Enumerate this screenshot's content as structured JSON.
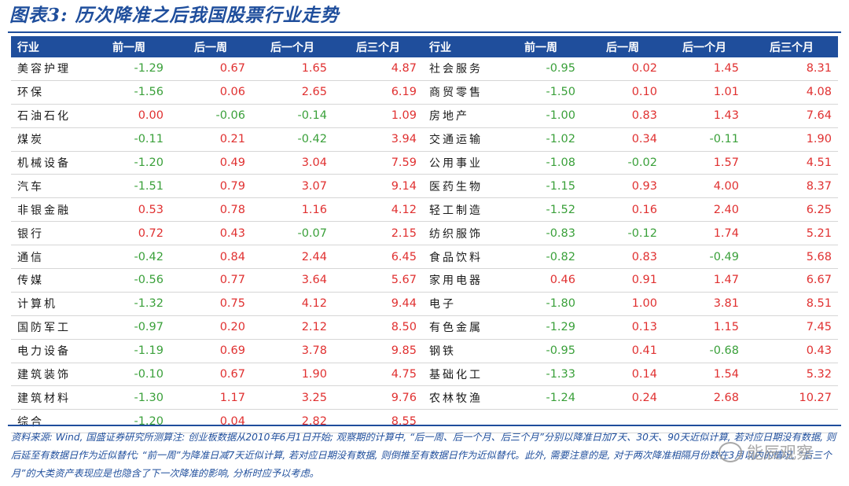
{
  "title": "图表3: 历次降准之后我国股票行业走势",
  "headers": [
    "行业",
    "前一周",
    "后一周",
    "后一个月",
    "后三个月",
    "行业",
    "前一周",
    "后一周",
    "后一个月",
    "后三个月"
  ],
  "left_rows": [
    {
      "name": "美容护理",
      "values": [
        "-1.29",
        "0.67",
        "1.65",
        "4.87"
      ]
    },
    {
      "name": "环保",
      "values": [
        "-1.56",
        "0.06",
        "2.65",
        "6.19"
      ]
    },
    {
      "name": "石油石化",
      "values": [
        "0.00",
        "-0.06",
        "-0.14",
        "1.09"
      ]
    },
    {
      "name": "煤炭",
      "values": [
        "-0.11",
        "0.21",
        "-0.42",
        "3.94"
      ]
    },
    {
      "name": "机械设备",
      "values": [
        "-1.20",
        "0.49",
        "3.04",
        "7.59"
      ]
    },
    {
      "name": "汽车",
      "values": [
        "-1.51",
        "0.79",
        "3.07",
        "9.14"
      ]
    },
    {
      "name": "非银金融",
      "values": [
        "0.53",
        "0.78",
        "1.16",
        "4.12"
      ]
    },
    {
      "name": "银行",
      "values": [
        "0.72",
        "0.43",
        "-0.07",
        "2.15"
      ]
    },
    {
      "name": "通信",
      "values": [
        "-0.42",
        "0.84",
        "2.44",
        "6.45"
      ]
    },
    {
      "name": "传媒",
      "values": [
        "-0.56",
        "0.77",
        "3.64",
        "5.67"
      ]
    },
    {
      "name": "计算机",
      "values": [
        "-1.32",
        "0.75",
        "4.12",
        "9.44"
      ]
    },
    {
      "name": "国防军工",
      "values": [
        "-0.97",
        "0.20",
        "2.12",
        "8.50"
      ]
    },
    {
      "name": "电力设备",
      "values": [
        "-1.19",
        "0.69",
        "3.78",
        "9.85"
      ]
    },
    {
      "name": "建筑装饰",
      "values": [
        "-0.10",
        "0.67",
        "1.90",
        "4.75"
      ]
    },
    {
      "name": "建筑材料",
      "values": [
        "-1.30",
        "1.17",
        "3.25",
        "9.76"
      ]
    },
    {
      "name": "综合",
      "values": [
        "-1.20",
        "0.04",
        "2.82",
        "8.55"
      ]
    }
  ],
  "right_rows": [
    {
      "name": "社会服务",
      "values": [
        "-0.95",
        "0.02",
        "1.45",
        "8.31"
      ]
    },
    {
      "name": "商贸零售",
      "values": [
        "-1.50",
        "0.10",
        "1.01",
        "4.08"
      ]
    },
    {
      "name": "房地产",
      "values": [
        "-1.00",
        "0.83",
        "1.43",
        "7.64"
      ]
    },
    {
      "name": "交通运输",
      "values": [
        "-1.02",
        "0.34",
        "-0.11",
        "1.90"
      ]
    },
    {
      "name": "公用事业",
      "values": [
        "-1.08",
        "-0.02",
        "1.57",
        "4.51"
      ]
    },
    {
      "name": "医药生物",
      "values": [
        "-1.15",
        "0.93",
        "4.00",
        "8.37"
      ]
    },
    {
      "name": "轻工制造",
      "values": [
        "-1.52",
        "0.16",
        "2.40",
        "6.25"
      ]
    },
    {
      "name": "纺织服饰",
      "values": [
        "-0.83",
        "-0.12",
        "1.74",
        "5.21"
      ]
    },
    {
      "name": "食品饮料",
      "values": [
        "-0.82",
        "0.83",
        "-0.49",
        "5.68"
      ]
    },
    {
      "name": "家用电器",
      "values": [
        "0.46",
        "0.91",
        "1.47",
        "6.67"
      ]
    },
    {
      "name": "电子",
      "values": [
        "-1.80",
        "1.00",
        "3.81",
        "8.51"
      ]
    },
    {
      "name": "有色金属",
      "values": [
        "-1.29",
        "0.13",
        "1.15",
        "7.45"
      ]
    },
    {
      "name": "钢铁",
      "values": [
        "-0.95",
        "0.41",
        "-0.68",
        "0.43"
      ]
    },
    {
      "name": "基础化工",
      "values": [
        "-1.33",
        "0.14",
        "1.54",
        "5.32"
      ]
    },
    {
      "name": "农林牧渔",
      "values": [
        "-1.24",
        "0.24",
        "2.68",
        "10.27"
      ]
    }
  ],
  "colors": {
    "header_bg": "#1f4e9c",
    "positive": "#e03030",
    "negative": "#3aa03a"
  },
  "note": "资料来源: Wind, 国盛证券研究所测算注: 创业板数据从2010年6月1日开始; 观察期的计算中, “后一周、后一个月、后三个月”分别以降准日加7天、30天、90天近似计算, 若对应日期没有数据, 则后延至有数据日作为近似替代; “前一周”为降准日减7天近似计算, 若对应日期没有数据, 则倒推至有数据日作为近似替代。此外, 需要注意的是, 对于两次降准相隔月份数在3月以内的情况, “后三个月”的大类资产表现应是也隐含了下一次降准的影响, 分析时应予以考虑。",
  "watermark": "能辰观察"
}
